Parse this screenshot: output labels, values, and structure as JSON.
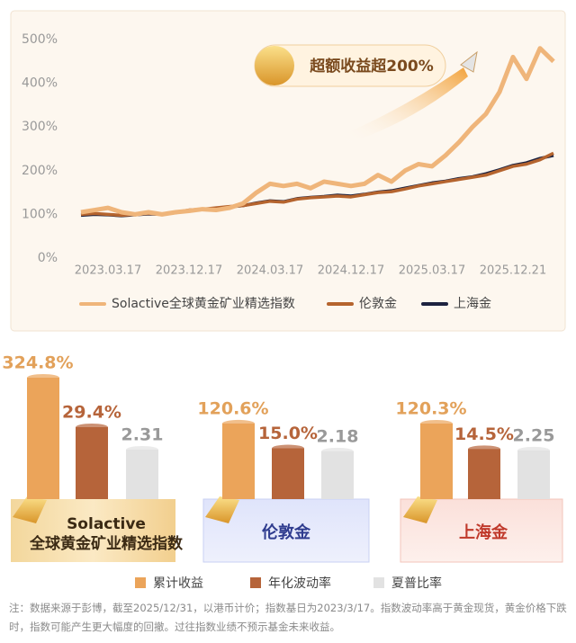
{
  "chart_data": [
    {
      "type": "line",
      "annotation": "超额收益超200%",
      "categories": [
        null,
        null,
        "2023.03.17",
        null,
        null,
        null,
        null,
        null,
        "2023.12.17",
        null,
        null,
        null,
        null,
        null,
        "2024.03.17",
        null,
        null,
        null,
        null,
        null,
        "2024.12.17",
        null,
        null,
        null,
        null,
        null,
        "2025.03.17",
        null,
        null,
        null,
        null,
        null,
        "2025.12.21",
        null,
        null,
        null
      ],
      "ylim": [
        0,
        500
      ],
      "yticks": [
        {
          "value": 0,
          "label": "0%"
        },
        {
          "value": 100,
          "label": "100%"
        },
        {
          "value": 200,
          "label": "200%"
        },
        {
          "value": 300,
          "label": "300%"
        },
        {
          "value": 400,
          "label": "400%"
        },
        {
          "value": 500,
          "label": "500%"
        }
      ],
      "series": [
        {
          "name": "Solactive全球黄金矿业精选指数",
          "color": "#efb57a",
          "values": [
            105,
            110,
            115,
            105,
            100,
            105,
            100,
            105,
            108,
            112,
            110,
            115,
            125,
            150,
            170,
            165,
            170,
            160,
            175,
            170,
            165,
            170,
            190,
            175,
            200,
            215,
            210,
            235,
            265,
            300,
            330,
            380,
            460,
            410,
            480,
            450
          ]
        },
        {
          "name": "伦敦金",
          "color": "#b5642e",
          "values": [
            100,
            102,
            100,
            98,
            100,
            102,
            100,
            105,
            110,
            112,
            115,
            118,
            120,
            125,
            130,
            128,
            135,
            138,
            140,
            142,
            140,
            145,
            150,
            152,
            158,
            165,
            170,
            175,
            180,
            185,
            190,
            200,
            210,
            215,
            225,
            240
          ]
        },
        {
          "name": "上海金",
          "color": "#1d2340",
          "values": [
            98,
            100,
            99,
            97,
            99,
            101,
            100,
            104,
            108,
            111,
            114,
            117,
            120,
            126,
            131,
            129,
            136,
            139,
            141,
            144,
            142,
            146,
            151,
            154,
            160,
            166,
            172,
            176,
            182,
            186,
            193,
            202,
            212,
            218,
            228,
            235
          ]
        }
      ]
    },
    {
      "type": "bar",
      "categories": [
        [
          "Solactive",
          "全球黄金矿业精选指数"
        ],
        [
          "伦敦金"
        ],
        [
          "上海金"
        ]
      ],
      "series": [
        {
          "name": "累计收益",
          "color": "#eba45a",
          "values": [
            324.8,
            120.6,
            120.3
          ],
          "value_labels": [
            "324.8%",
            "120.6%",
            "120.3%"
          ]
        },
        {
          "name": "年化波动率",
          "color": "#b6643a",
          "values": [
            29.4,
            15.0,
            14.5
          ],
          "value_labels": [
            "29.4%",
            "15.0%",
            "14.5%"
          ]
        },
        {
          "name": "夏普比率",
          "color": "#e2e2e2",
          "values": [
            2.31,
            2.18,
            2.25
          ]
        }
      ]
    }
  ],
  "note": "注：数据来源于彭博，截至2025/12/31，以港币计价；指数基日为2023/3/17。指数波动率高于黄金现货，黄金价格下跌时，指数可能产生更大幅度的回撤。过往指数业绩不预示基金未来收益。"
}
